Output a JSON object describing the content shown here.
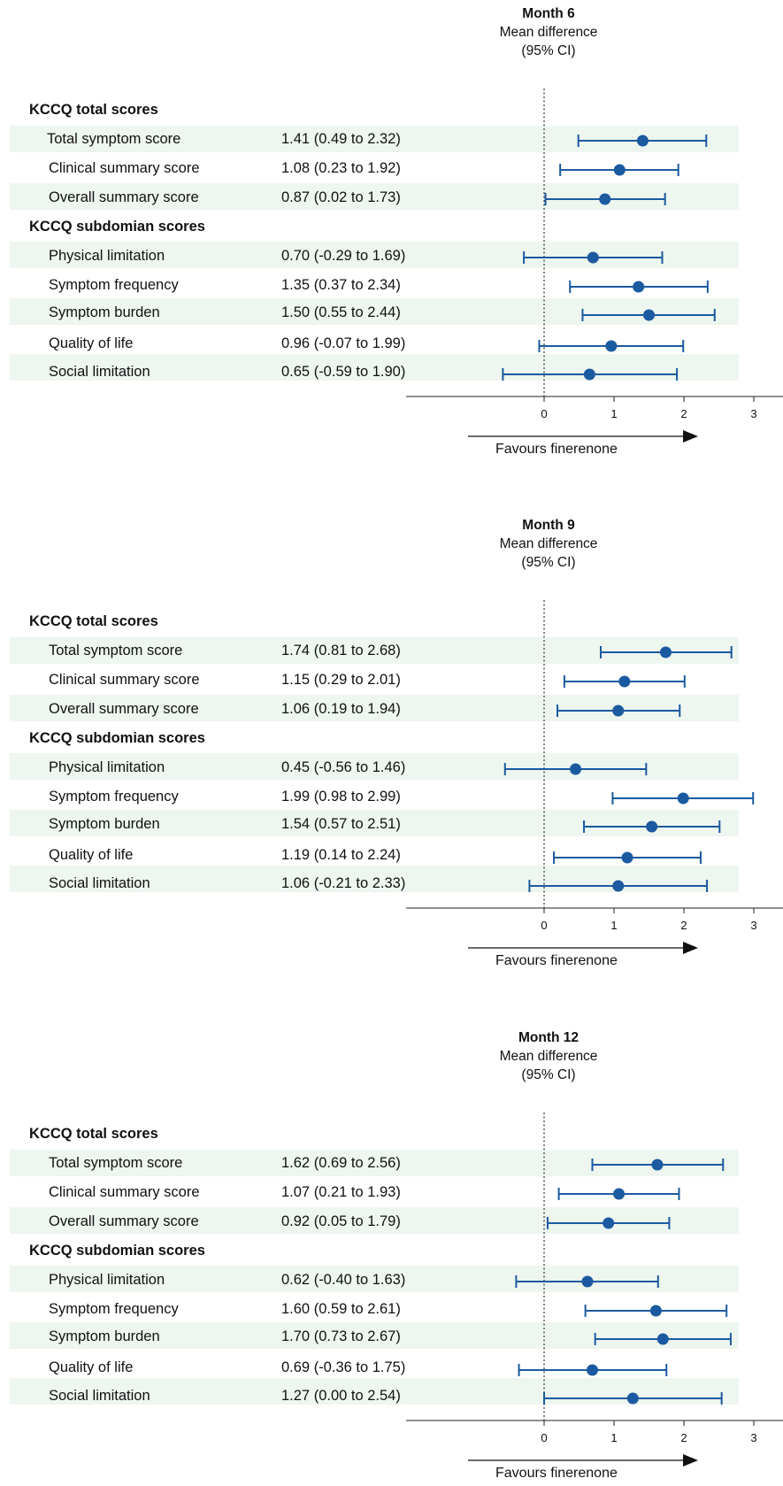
{
  "chart_data": [
    {
      "type": "forest",
      "title": "Month 6",
      "subtitle": [
        "Mean difference",
        "(95% CI)"
      ],
      "xticks": [
        0,
        1,
        2,
        3
      ],
      "xlim": [
        -2,
        3.4
      ],
      "reference_line": 0,
      "arrow_label": "Favours finerenone",
      "colors": {
        "marker": "#1b5aa0",
        "band": "#edf6ef"
      },
      "sections": [
        {
          "label": "KCCQ total scores",
          "rows": [
            {
              "name": "Total symptom score",
              "text": "1.41 (0.49 to 2.32)",
              "mean": 1.41,
              "lo": 0.49,
              "hi": 2.32
            },
            {
              "name": "Clinical summary score",
              "text": "1.08 (0.23 to 1.92)",
              "mean": 1.08,
              "lo": 0.23,
              "hi": 1.92
            },
            {
              "name": "Overall summary score",
              "text": "0.87 (0.02 to 1.73)",
              "mean": 0.87,
              "lo": 0.02,
              "hi": 1.73
            }
          ]
        },
        {
          "label": "KCCQ subdomian scores",
          "rows": [
            {
              "name": "Physical limitation",
              "text": "0.70 (-0.29 to 1.69)",
              "mean": 0.7,
              "lo": -0.29,
              "hi": 1.69
            },
            {
              "name": "Symptom frequency",
              "text": "1.35 (0.37 to 2.34)",
              "mean": 1.35,
              "lo": 0.37,
              "hi": 2.34
            },
            {
              "name": "Symptom burden",
              "text": "1.50 (0.55 to 2.44)",
              "mean": 1.5,
              "lo": 0.55,
              "hi": 2.44
            },
            {
              "name": "Quality of life",
              "text": "0.96 (-0.07 to 1.99)",
              "mean": 0.96,
              "lo": -0.07,
              "hi": 1.99
            },
            {
              "name": "Social limitation",
              "text": "0.65 (-0.59 to 1.90)",
              "mean": 0.65,
              "lo": -0.59,
              "hi": 1.9
            }
          ]
        }
      ]
    },
    {
      "type": "forest",
      "title": "Month 9",
      "subtitle": [
        "Mean difference",
        "(95% CI)"
      ],
      "xticks": [
        0,
        1,
        2,
        3
      ],
      "xlim": [
        -2,
        3.4
      ],
      "reference_line": 0,
      "arrow_label": "Favours finerenone",
      "colors": {
        "marker": "#1b5aa0",
        "band": "#edf6ef"
      },
      "sections": [
        {
          "label": "KCCQ total scores",
          "rows": [
            {
              "name": "Total symptom score",
              "text": "1.74 (0.81 to 2.68)",
              "mean": 1.74,
              "lo": 0.81,
              "hi": 2.68
            },
            {
              "name": "Clinical summary score",
              "text": "1.15 (0.29 to 2.01)",
              "mean": 1.15,
              "lo": 0.29,
              "hi": 2.01
            },
            {
              "name": "Overall summary score",
              "text": "1.06 (0.19 to 1.94)",
              "mean": 1.06,
              "lo": 0.19,
              "hi": 1.94
            }
          ]
        },
        {
          "label": "KCCQ subdomian scores",
          "rows": [
            {
              "name": "Physical limitation",
              "text": "0.45 (-0.56 to 1.46)",
              "mean": 0.45,
              "lo": -0.56,
              "hi": 1.46
            },
            {
              "name": "Symptom frequency",
              "text": "1.99 (0.98 to 2.99)",
              "mean": 1.99,
              "lo": 0.98,
              "hi": 2.99
            },
            {
              "name": "Symptom burden",
              "text": "1.54 (0.57 to 2.51)",
              "mean": 1.54,
              "lo": 0.57,
              "hi": 2.51
            },
            {
              "name": "Quality of life",
              "text": "1.19 (0.14 to 2.24)",
              "mean": 1.19,
              "lo": 0.14,
              "hi": 2.24
            },
            {
              "name": "Social limitation",
              "text": "1.06 (-0.21 to 2.33)",
              "mean": 1.06,
              "lo": -0.21,
              "hi": 2.33
            }
          ]
        }
      ]
    },
    {
      "type": "forest",
      "title": "Month 12",
      "subtitle": [
        "Mean difference",
        "(95% CI)"
      ],
      "xticks": [
        0,
        1,
        2,
        3
      ],
      "xlim": [
        -2,
        3.4
      ],
      "reference_line": 0,
      "arrow_label": "Favours finerenone",
      "colors": {
        "marker": "#1b5aa0",
        "band": "#edf6ef"
      },
      "sections": [
        {
          "label": "KCCQ total scores",
          "rows": [
            {
              "name": "Total symptom score",
              "text": "1.62 (0.69 to 2.56)",
              "mean": 1.62,
              "lo": 0.69,
              "hi": 2.56
            },
            {
              "name": "Clinical summary score",
              "text": "1.07 (0.21 to 1.93)",
              "mean": 1.07,
              "lo": 0.21,
              "hi": 1.93
            },
            {
              "name": "Overall summary score",
              "text": "0.92 (0.05 to 1.79)",
              "mean": 0.92,
              "lo": 0.05,
              "hi": 1.79
            }
          ]
        },
        {
          "label": "KCCQ subdomian scores",
          "rows": [
            {
              "name": "Physical limitation",
              "text": "0.62 (-0.40 to 1.63)",
              "mean": 0.62,
              "lo": -0.4,
              "hi": 1.63
            },
            {
              "name": "Symptom frequency",
              "text": "1.60 (0.59 to 2.61)",
              "mean": 1.6,
              "lo": 0.59,
              "hi": 2.61
            },
            {
              "name": "Symptom burden",
              "text": "1.70 (0.73 to 2.67)",
              "mean": 1.7,
              "lo": 0.73,
              "hi": 2.67
            },
            {
              "name": "Quality of life",
              "text": "0.69 (-0.36 to 1.75)",
              "mean": 0.69,
              "lo": -0.36,
              "hi": 1.75
            },
            {
              "name": "Social limitation",
              "text": "1.27 (0.00 to 2.54)",
              "mean": 1.27,
              "lo": 0.0,
              "hi": 2.54
            }
          ]
        }
      ]
    }
  ]
}
